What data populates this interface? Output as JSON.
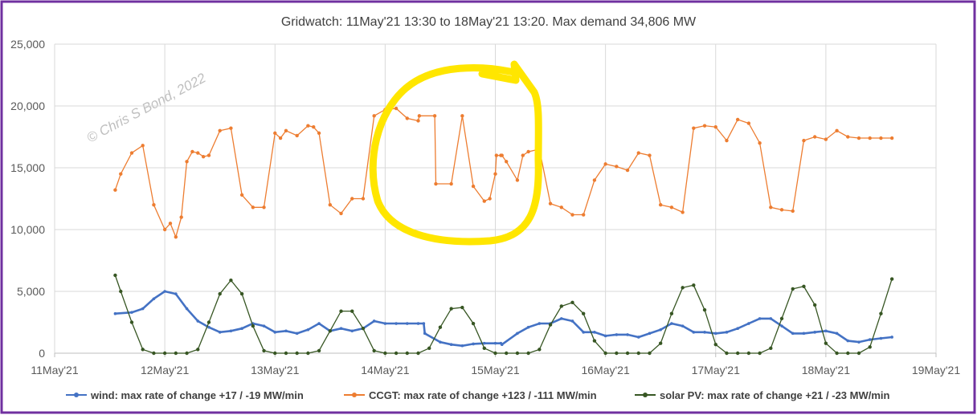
{
  "chart_data": {
    "type": "line",
    "title": "Gridwatch:  11May'21 13:30  to 18May'21 13:20.   Max demand 34,806 MW",
    "xlabel": "",
    "ylabel": "",
    "ylim": [
      0,
      25000
    ],
    "yticks": [
      "0",
      "5,000",
      "10,000",
      "15,000",
      "20,000",
      "25,000"
    ],
    "xlim": [
      0,
      8
    ],
    "xticks": [
      "11May'21",
      "12May'21",
      "13May'21",
      "14May'21",
      "15May'21",
      "16May'21",
      "17May'21",
      "18May'21",
      "19May'21"
    ],
    "grid": true,
    "legend_position": "bottom",
    "watermark": "© Chris S Bond, 2022",
    "annotation": "yellow hand-drawn circle highlighting CCGT plateau 14May–15May",
    "series": [
      {
        "name": "wind: max rate of change +17 / -19 MW/min",
        "color": "#4472c4",
        "x": [
          0.55,
          0.7,
          0.8,
          0.9,
          1.0,
          1.1,
          1.2,
          1.3,
          1.4,
          1.5,
          1.6,
          1.7,
          1.8,
          1.9,
          2.0,
          2.1,
          2.2,
          2.3,
          2.4,
          2.5,
          2.6,
          2.7,
          2.8,
          2.9,
          3.0,
          3.1,
          3.2,
          3.3,
          3.35,
          3.36,
          3.5,
          3.6,
          3.7,
          3.8,
          3.9,
          4.0,
          4.05,
          4.06,
          4.2,
          4.3,
          4.4,
          4.5,
          4.6,
          4.7,
          4.8,
          4.9,
          5.0,
          5.1,
          5.2,
          5.3,
          5.4,
          5.5,
          5.6,
          5.7,
          5.8,
          5.9,
          6.0,
          6.1,
          6.2,
          6.3,
          6.4,
          6.5,
          6.6,
          6.7,
          6.8,
          6.9,
          7.0,
          7.1,
          7.2,
          7.3,
          7.4,
          7.5,
          7.6
        ],
        "y": [
          3200,
          3300,
          3600,
          4400,
          5000,
          4800,
          3600,
          2600,
          2100,
          1700,
          1800,
          2000,
          2400,
          2200,
          1700,
          1800,
          1600,
          1900,
          2400,
          1800,
          2000,
          1800,
          2000,
          2600,
          2400,
          2400,
          2400,
          2400,
          2400,
          1600,
          900,
          700,
          600,
          750,
          800,
          800,
          800,
          700,
          1600,
          2100,
          2400,
          2400,
          2800,
          2600,
          1700,
          1700,
          1400,
          1500,
          1500,
          1300,
          1600,
          1900,
          2400,
          2200,
          1700,
          1700,
          1600,
          1700,
          2000,
          2400,
          2800,
          2800,
          2200,
          1600,
          1600,
          1700,
          1800,
          1600,
          1000,
          900,
          1100,
          1200,
          1300
        ]
      },
      {
        "name": "CCGT: max rate of change +123 / -111 MW/min",
        "color": "#ed7d31",
        "x": [
          0.55,
          0.6,
          0.7,
          0.8,
          0.9,
          1.0,
          1.05,
          1.1,
          1.15,
          1.2,
          1.25,
          1.3,
          1.35,
          1.4,
          1.5,
          1.6,
          1.7,
          1.8,
          1.9,
          2.0,
          2.05,
          2.1,
          2.2,
          2.3,
          2.35,
          2.4,
          2.5,
          2.6,
          2.7,
          2.8,
          2.9,
          3.0,
          3.1,
          3.2,
          3.3,
          3.31,
          3.45,
          3.46,
          3.6,
          3.7,
          3.8,
          3.9,
          3.95,
          4.0,
          4.01,
          4.05,
          4.06,
          4.1,
          4.2,
          4.25,
          4.3,
          4.4,
          4.5,
          4.6,
          4.7,
          4.8,
          4.9,
          5.0,
          5.1,
          5.2,
          5.3,
          5.4,
          5.5,
          5.6,
          5.7,
          5.8,
          5.9,
          6.0,
          6.1,
          6.2,
          6.3,
          6.4,
          6.5,
          6.6,
          6.7,
          6.8,
          6.9,
          7.0,
          7.1,
          7.2,
          7.3,
          7.4,
          7.5,
          7.6
        ],
        "y": [
          13200,
          14500,
          16200,
          16800,
          12000,
          10000,
          10500,
          9400,
          11000,
          15500,
          16300,
          16200,
          15900,
          16000,
          18000,
          18200,
          12800,
          11800,
          11800,
          17800,
          17400,
          18000,
          17600,
          18400,
          18300,
          17800,
          12000,
          11300,
          12500,
          12500,
          19200,
          19700,
          19800,
          19000,
          18800,
          19200,
          19200,
          13700,
          13700,
          19200,
          13500,
          12300,
          12500,
          14500,
          16000,
          16000,
          16000,
          15500,
          14000,
          16000,
          16300,
          16500,
          12100,
          11800,
          11200,
          11200,
          14000,
          15300,
          15100,
          14800,
          16200,
          16000,
          12000,
          11800,
          11400,
          18200,
          18400,
          18300,
          17200,
          18900,
          18600,
          17000,
          11800,
          11600,
          11500,
          17200,
          17500,
          17300,
          18000,
          17500,
          17400,
          17400,
          17400,
          17400
        ]
      },
      {
        "name": "solar PV: max rate of change +21 / -23 MW/min",
        "color": "#375623",
        "x": [
          0.55,
          0.6,
          0.7,
          0.8,
          0.9,
          1.0,
          1.1,
          1.2,
          1.3,
          1.4,
          1.5,
          1.6,
          1.7,
          1.8,
          1.9,
          2.0,
          2.1,
          2.2,
          2.3,
          2.4,
          2.5,
          2.6,
          2.7,
          2.8,
          2.9,
          3.0,
          3.1,
          3.2,
          3.3,
          3.4,
          3.5,
          3.6,
          3.7,
          3.8,
          3.9,
          4.0,
          4.1,
          4.2,
          4.3,
          4.4,
          4.5,
          4.6,
          4.7,
          4.8,
          4.9,
          5.0,
          5.1,
          5.2,
          5.3,
          5.4,
          5.5,
          5.6,
          5.7,
          5.8,
          5.9,
          6.0,
          6.1,
          6.2,
          6.3,
          6.4,
          6.5,
          6.6,
          6.7,
          6.8,
          6.9,
          7.0,
          7.1,
          7.2,
          7.3,
          7.4,
          7.5,
          7.6
        ],
        "y": [
          6300,
          5000,
          2500,
          300,
          0,
          0,
          0,
          0,
          300,
          2500,
          4800,
          5900,
          4800,
          2200,
          200,
          0,
          0,
          0,
          0,
          200,
          1800,
          3400,
          3400,
          2000,
          200,
          0,
          0,
          0,
          0,
          400,
          2100,
          3600,
          3700,
          2400,
          400,
          0,
          0,
          0,
          0,
          300,
          2300,
          3800,
          4100,
          3200,
          1000,
          0,
          0,
          0,
          0,
          0,
          800,
          3200,
          5300,
          5500,
          3500,
          700,
          0,
          0,
          0,
          0,
          400,
          2800,
          5200,
          5400,
          3900,
          800,
          0,
          0,
          0,
          500,
          3200,
          6000
        ]
      }
    ]
  }
}
